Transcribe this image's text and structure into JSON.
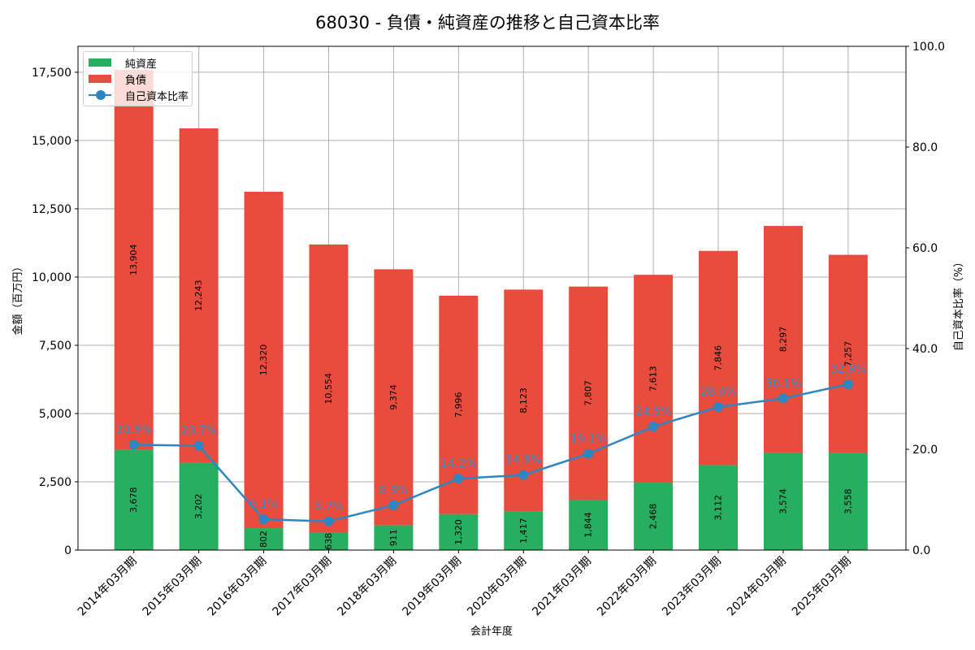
{
  "title": "68030 - 負債・純資産の推移と自己資本比率",
  "colors": {
    "net_assets": "#27ae60",
    "liabilities": "#e74c3c",
    "equity_ratio": "#2e86c1"
  },
  "legend": {
    "net_assets": "純資産",
    "liabilities": "負債",
    "equity_ratio": "自己資本比率"
  },
  "axes": {
    "xlabel": "会計年度",
    "ylabel_left": "金額（百万円）",
    "ylabel_right": "自己資本比率（%）",
    "left_ticks": [
      "0",
      "2,500",
      "5,000",
      "7,500",
      "10,000",
      "12,500",
      "15,000",
      "17,500"
    ],
    "right_ticks": [
      "0.0",
      "20.0",
      "40.0",
      "60.0",
      "80.0",
      "100.0"
    ]
  },
  "chart_data": {
    "type": "bar",
    "stacked": true,
    "title": "68030 - 負債・純資産の推移と自己資本比率",
    "xlabel": "会計年度",
    "ylabel": "金額（百万円）",
    "ylabel_right": "自己資本比率（%）",
    "ylim": [
      0,
      18450
    ],
    "ylim_right": [
      0,
      100
    ],
    "grid": true,
    "legend_position": "upper left",
    "categories": [
      "2014年03月期",
      "2015年03月期",
      "2016年03月期",
      "2017年03月期",
      "2018年03月期",
      "2019年03月期",
      "2020年03月期",
      "2021年03月期",
      "2022年03月期",
      "2023年03月期",
      "2024年03月期",
      "2025年03月期"
    ],
    "series": [
      {
        "name": "純資産",
        "type": "bar",
        "axis": "left",
        "values": [
          3678,
          3202,
          802,
          638,
          911,
          1320,
          1417,
          1844,
          2468,
          3112,
          3574,
          3558
        ]
      },
      {
        "name": "負債",
        "type": "bar",
        "axis": "left",
        "values": [
          13904,
          12243,
          12320,
          10554,
          9374,
          7996,
          8123,
          7807,
          7613,
          7846,
          8297,
          7257
        ]
      },
      {
        "name": "自己資本比率",
        "type": "line",
        "axis": "right",
        "values": [
          20.9,
          20.7,
          6.1,
          5.7,
          8.9,
          14.2,
          14.9,
          19.1,
          24.5,
          28.4,
          30.1,
          32.9
        ]
      }
    ]
  }
}
